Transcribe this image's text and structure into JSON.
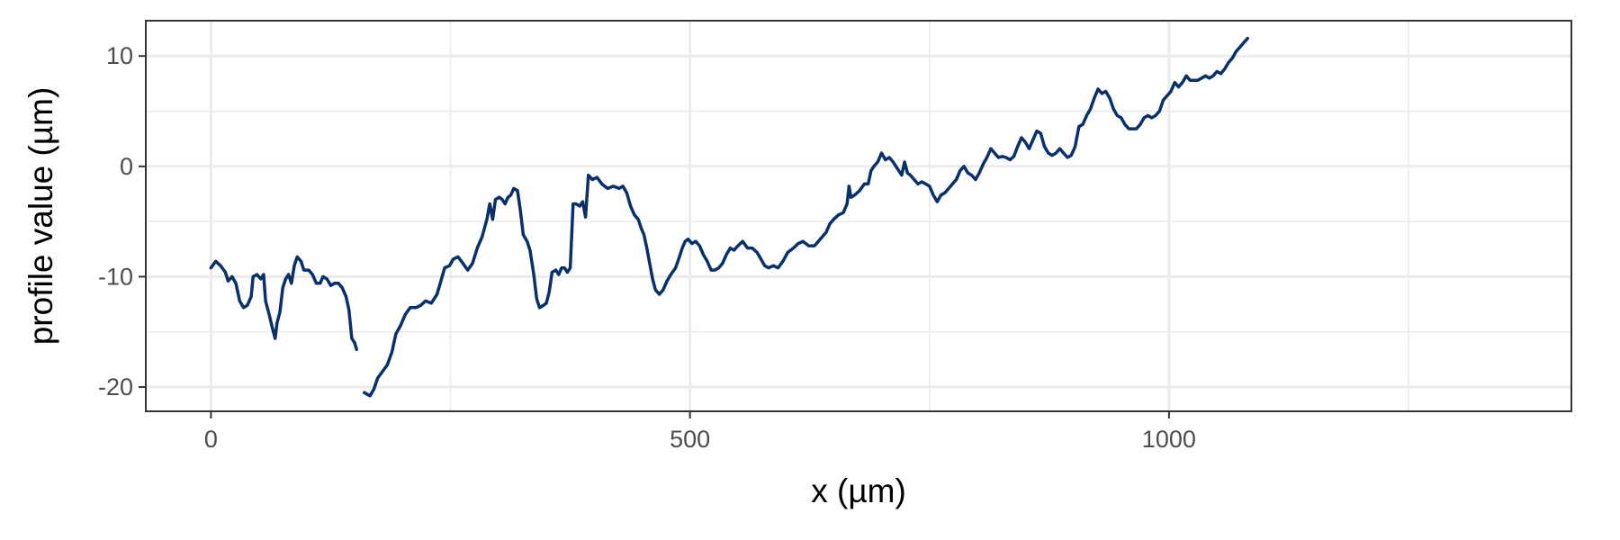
{
  "chart_data": {
    "type": "line",
    "xlabel": "x (µm)",
    "ylabel": "profile value (µm)",
    "xlim": [
      -68,
      1420
    ],
    "ylim": [
      -22.2,
      13.2
    ],
    "x_ticks": [
      0,
      500,
      1000
    ],
    "x_tick_labels": [
      "0",
      "500",
      "1000"
    ],
    "y_ticks": [
      -20,
      -10,
      0,
      10
    ],
    "y_tick_labels": [
      "-20",
      "-10",
      "0",
      "10"
    ],
    "x_minor_ticks": [
      250,
      750,
      1250
    ],
    "y_minor_ticks": [
      -15,
      -5,
      5
    ],
    "grid": true,
    "line_color": "#08306b",
    "series": [
      {
        "segments": [
          [
            [
              0,
              -9.2
            ],
            [
              5,
              -8.6
            ],
            [
              10,
              -9.0
            ],
            [
              15,
              -9.6
            ],
            [
              18,
              -10.4
            ],
            [
              22,
              -10.0
            ],
            [
              26,
              -10.6
            ],
            [
              30,
              -12.2
            ],
            [
              34,
              -12.8
            ],
            [
              38,
              -12.6
            ],
            [
              42,
              -11.8
            ],
            [
              44,
              -10.0
            ],
            [
              48,
              -9.8
            ],
            [
              52,
              -10.2
            ],
            [
              55,
              -9.8
            ],
            [
              57,
              -12.2
            ],
            [
              61,
              -13.5
            ],
            [
              64,
              -14.6
            ],
            [
              67,
              -15.6
            ],
            [
              69,
              -14.2
            ],
            [
              72,
              -13.2
            ],
            [
              75,
              -11.0
            ],
            [
              78,
              -10.2
            ],
            [
              81,
              -9.8
            ],
            [
              84,
              -10.6
            ],
            [
              87,
              -9.0
            ],
            [
              90,
              -8.2
            ],
            [
              94,
              -8.6
            ],
            [
              97,
              -9.4
            ],
            [
              102,
              -9.4
            ],
            [
              106,
              -9.8
            ],
            [
              110,
              -10.6
            ],
            [
              114,
              -10.6
            ],
            [
              117,
              -10.0
            ],
            [
              121,
              -10.2
            ],
            [
              125,
              -10.8
            ],
            [
              129,
              -10.6
            ],
            [
              133,
              -10.6
            ],
            [
              137,
              -11.0
            ],
            [
              141,
              -11.8
            ],
            [
              144,
              -13.0
            ],
            [
              147,
              -15.6
            ],
            [
              150,
              -16.0
            ],
            [
              152,
              -16.6
            ]
          ],
          [
            [
              160,
              -20.5
            ],
            [
              166,
              -20.8
            ],
            [
              170,
              -20.2
            ],
            [
              174,
              -19.2
            ],
            [
              179,
              -18.6
            ],
            [
              184,
              -18.0
            ],
            [
              189,
              -16.8
            ],
            [
              193,
              -15.2
            ],
            [
              198,
              -14.4
            ],
            [
              203,
              -13.4
            ],
            [
              208,
              -12.8
            ],
            [
              214,
              -12.8
            ],
            [
              219,
              -12.6
            ],
            [
              224,
              -12.2
            ],
            [
              230,
              -12.4
            ],
            [
              236,
              -11.6
            ],
            [
              240,
              -10.4
            ],
            [
              244,
              -9.2
            ],
            [
              249,
              -9.0
            ],
            [
              253,
              -8.4
            ],
            [
              258,
              -8.2
            ],
            [
              263,
              -8.8
            ],
            [
              268,
              -9.4
            ],
            [
              273,
              -8.8
            ],
            [
              278,
              -7.4
            ],
            [
              283,
              -6.4
            ],
            [
              288,
              -4.8
            ],
            [
              291,
              -3.4
            ],
            [
              294,
              -4.8
            ],
            [
              297,
              -3.0
            ],
            [
              301,
              -2.8
            ],
            [
              304,
              -3.0
            ],
            [
              307,
              -3.4
            ],
            [
              310,
              -2.8
            ],
            [
              313,
              -2.6
            ],
            [
              316,
              -2.0
            ],
            [
              320,
              -2.2
            ],
            [
              323,
              -4.0
            ],
            [
              326,
              -6.2
            ],
            [
              330,
              -6.8
            ],
            [
              333,
              -7.6
            ],
            [
              337,
              -9.8
            ],
            [
              340,
              -12.0
            ],
            [
              343,
              -12.8
            ],
            [
              347,
              -12.6
            ],
            [
              350,
              -12.4
            ],
            [
              353,
              -11.4
            ],
            [
              356,
              -9.6
            ],
            [
              360,
              -9.4
            ],
            [
              363,
              -9.8
            ],
            [
              366,
              -9.2
            ],
            [
              369,
              -9.2
            ],
            [
              372,
              -9.6
            ],
            [
              375,
              -9.2
            ],
            [
              378,
              -3.4
            ],
            [
              381,
              -3.4
            ],
            [
              385,
              -3.6
            ],
            [
              388,
              -3.2
            ],
            [
              391,
              -4.6
            ],
            [
              394,
              -0.8
            ],
            [
              398,
              -1.2
            ],
            [
              403,
              -1.0
            ],
            [
              408,
              -1.6
            ],
            [
              414,
              -2.0
            ],
            [
              420,
              -1.8
            ],
            [
              426,
              -2.0
            ],
            [
              430,
              -1.8
            ],
            [
              434,
              -2.4
            ],
            [
              438,
              -3.6
            ],
            [
              442,
              -4.4
            ],
            [
              446,
              -4.8
            ],
            [
              449,
              -5.6
            ],
            [
              452,
              -6.2
            ],
            [
              455,
              -7.4
            ],
            [
              458,
              -8.8
            ],
            [
              461,
              -10.2
            ],
            [
              464,
              -11.2
            ],
            [
              468,
              -11.6
            ],
            [
              472,
              -11.2
            ],
            [
              476,
              -10.4
            ],
            [
              480,
              -9.8
            ],
            [
              485,
              -9.2
            ],
            [
              489,
              -8.2
            ],
            [
              492,
              -7.4
            ],
            [
              495,
              -6.8
            ],
            [
              498,
              -6.6
            ],
            [
              502,
              -7.0
            ],
            [
              506,
              -6.8
            ],
            [
              510,
              -7.2
            ],
            [
              514,
              -8.0
            ],
            [
              518,
              -8.6
            ],
            [
              522,
              -9.4
            ],
            [
              526,
              -9.4
            ],
            [
              530,
              -9.2
            ],
            [
              534,
              -8.8
            ],
            [
              538,
              -8.0
            ],
            [
              542,
              -7.4
            ],
            [
              546,
              -7.6
            ],
            [
              550,
              -7.2
            ],
            [
              555,
              -6.8
            ],
            [
              560,
              -7.4
            ],
            [
              565,
              -7.4
            ],
            [
              570,
              -7.8
            ],
            [
              574,
              -8.4
            ],
            [
              578,
              -9.0
            ],
            [
              582,
              -9.2
            ],
            [
              587,
              -9.0
            ],
            [
              592,
              -9.2
            ],
            [
              597,
              -8.6
            ],
            [
              602,
              -7.8
            ],
            [
              608,
              -7.4
            ],
            [
              613,
              -7.0
            ],
            [
              618,
              -6.8
            ],
            [
              624,
              -7.2
            ],
            [
              630,
              -7.2
            ],
            [
              636,
              -6.6
            ],
            [
              642,
              -6.0
            ],
            [
              646,
              -5.2
            ],
            [
              650,
              -4.8
            ],
            [
              655,
              -4.4
            ],
            [
              660,
              -4.2
            ],
            [
              664,
              -3.4
            ],
            [
              666,
              -1.8
            ],
            [
              668,
              -2.8
            ],
            [
              672,
              -2.6
            ],
            [
              677,
              -2.2
            ],
            [
              682,
              -1.6
            ],
            [
              686,
              -1.6
            ],
            [
              689,
              -0.4
            ],
            [
              692,
              0.0
            ],
            [
              696,
              0.4
            ],
            [
              700,
              1.2
            ],
            [
              704,
              0.6
            ],
            [
              708,
              0.8
            ],
            [
              712,
              0.4
            ],
            [
              715,
              0.0
            ],
            [
              718,
              -0.4
            ],
            [
              721,
              -0.8
            ],
            [
              724,
              0.4
            ],
            [
              727,
              -0.6
            ],
            [
              730,
              -0.8
            ],
            [
              734,
              -1.2
            ],
            [
              738,
              -1.6
            ],
            [
              742,
              -1.4
            ],
            [
              746,
              -1.6
            ],
            [
              750,
              -1.8
            ],
            [
              754,
              -2.6
            ],
            [
              758,
              -3.2
            ],
            [
              762,
              -2.6
            ],
            [
              766,
              -2.4
            ],
            [
              770,
              -2.0
            ],
            [
              774,
              -1.6
            ],
            [
              778,
              -1.2
            ],
            [
              782,
              -0.4
            ],
            [
              786,
              0.0
            ],
            [
              790,
              -0.6
            ],
            [
              794,
              -0.8
            ],
            [
              798,
              -1.2
            ],
            [
              802,
              -0.6
            ],
            [
              806,
              0.2
            ],
            [
              810,
              0.8
            ],
            [
              814,
              1.6
            ],
            [
              818,
              1.2
            ],
            [
              822,
              0.8
            ],
            [
              826,
              0.9
            ],
            [
              830,
              0.8
            ],
            [
              834,
              0.6
            ],
            [
              838,
              0.9
            ],
            [
              842,
              1.8
            ],
            [
              846,
              2.6
            ],
            [
              850,
              2.2
            ],
            [
              854,
              1.6
            ],
            [
              858,
              2.4
            ],
            [
              862,
              3.2
            ],
            [
              866,
              3.0
            ],
            [
              870,
              1.8
            ],
            [
              874,
              1.2
            ],
            [
              878,
              1.0
            ],
            [
              882,
              1.2
            ],
            [
              886,
              1.6
            ],
            [
              890,
              1.2
            ],
            [
              894,
              0.8
            ],
            [
              898,
              1.0
            ],
            [
              902,
              1.8
            ],
            [
              906,
              3.6
            ],
            [
              910,
              3.8
            ],
            [
              914,
              4.6
            ],
            [
              918,
              5.2
            ],
            [
              922,
              6.2
            ],
            [
              926,
              7.0
            ],
            [
              930,
              6.6
            ],
            [
              934,
              6.8
            ],
            [
              938,
              6.2
            ],
            [
              942,
              5.2
            ],
            [
              946,
              4.6
            ],
            [
              950,
              4.4
            ],
            [
              954,
              3.8
            ],
            [
              958,
              3.4
            ],
            [
              962,
              3.4
            ],
            [
              966,
              3.4
            ],
            [
              970,
              3.8
            ],
            [
              974,
              4.4
            ],
            [
              978,
              4.6
            ],
            [
              982,
              4.4
            ],
            [
              986,
              4.6
            ],
            [
              990,
              5.0
            ],
            [
              994,
              6.0
            ],
            [
              998,
              6.4
            ],
            [
              1002,
              6.8
            ],
            [
              1006,
              7.6
            ],
            [
              1010,
              7.2
            ],
            [
              1014,
              7.6
            ],
            [
              1018,
              8.2
            ],
            [
              1022,
              7.8
            ],
            [
              1026,
              7.8
            ],
            [
              1030,
              7.8
            ],
            [
              1034,
              8.0
            ],
            [
              1038,
              8.2
            ],
            [
              1042,
              8.0
            ],
            [
              1046,
              8.2
            ],
            [
              1050,
              8.6
            ],
            [
              1054,
              8.4
            ],
            [
              1058,
              8.8
            ],
            [
              1062,
              9.4
            ],
            [
              1066,
              9.8
            ],
            [
              1070,
              10.4
            ],
            [
              1074,
              10.8
            ],
            [
              1078,
              11.2
            ],
            [
              1082,
              11.6
            ]
          ]
        ]
      }
    ]
  }
}
